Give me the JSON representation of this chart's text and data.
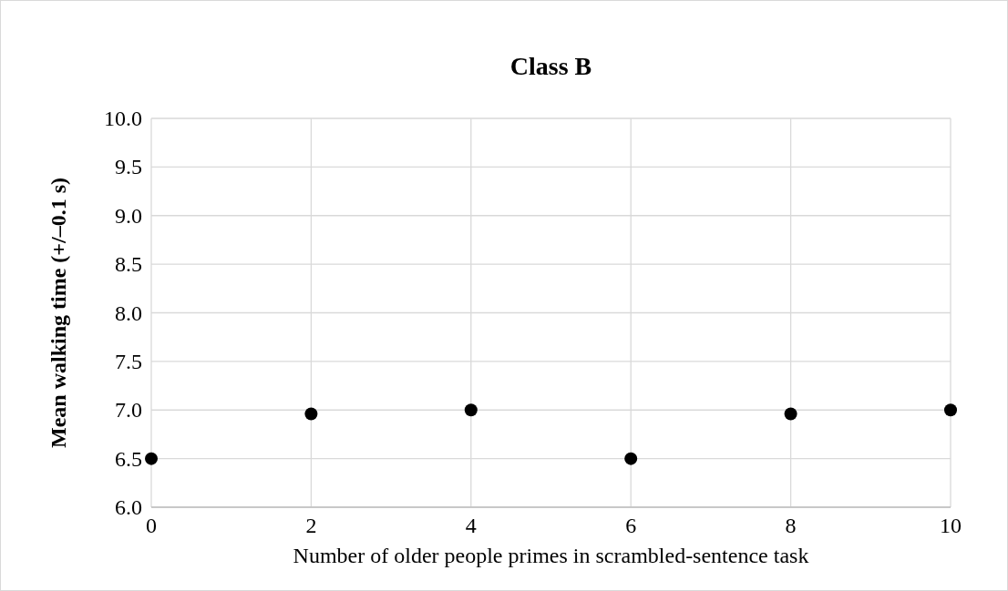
{
  "chart_data": {
    "type": "scatter",
    "title": "Class B",
    "xlabel": "Number of older people primes in scrambled-sentence task",
    "ylabel": "Mean walking time (+/–0.1 s)",
    "x": [
      0,
      2,
      4,
      6,
      8,
      10
    ],
    "series": [
      {
        "color": "#000000",
        "values": [
          6.5,
          6.96,
          7.0,
          6.5,
          6.96,
          7.0
        ]
      }
    ],
    "xlim": [
      0,
      10
    ],
    "xticks": [
      0,
      2,
      4,
      6,
      8,
      10
    ],
    "ylim": [
      6.0,
      10.0
    ],
    "yticks": [
      {
        "value": 6,
        "label": "6.0"
      },
      {
        "value": 6.5,
        "label": "6.5"
      },
      {
        "value": 7,
        "label": "7.0"
      },
      {
        "value": 7.5,
        "label": "7.5"
      },
      {
        "value": 8,
        "label": "8.0"
      },
      {
        "value": 8.5,
        "label": "8.5"
      },
      {
        "value": 9,
        "label": "9.0"
      },
      {
        "value": 9.5,
        "label": "9.5"
      },
      {
        "value": 10,
        "label": "10.0"
      }
    ],
    "grid": true,
    "marker": "circle"
  }
}
